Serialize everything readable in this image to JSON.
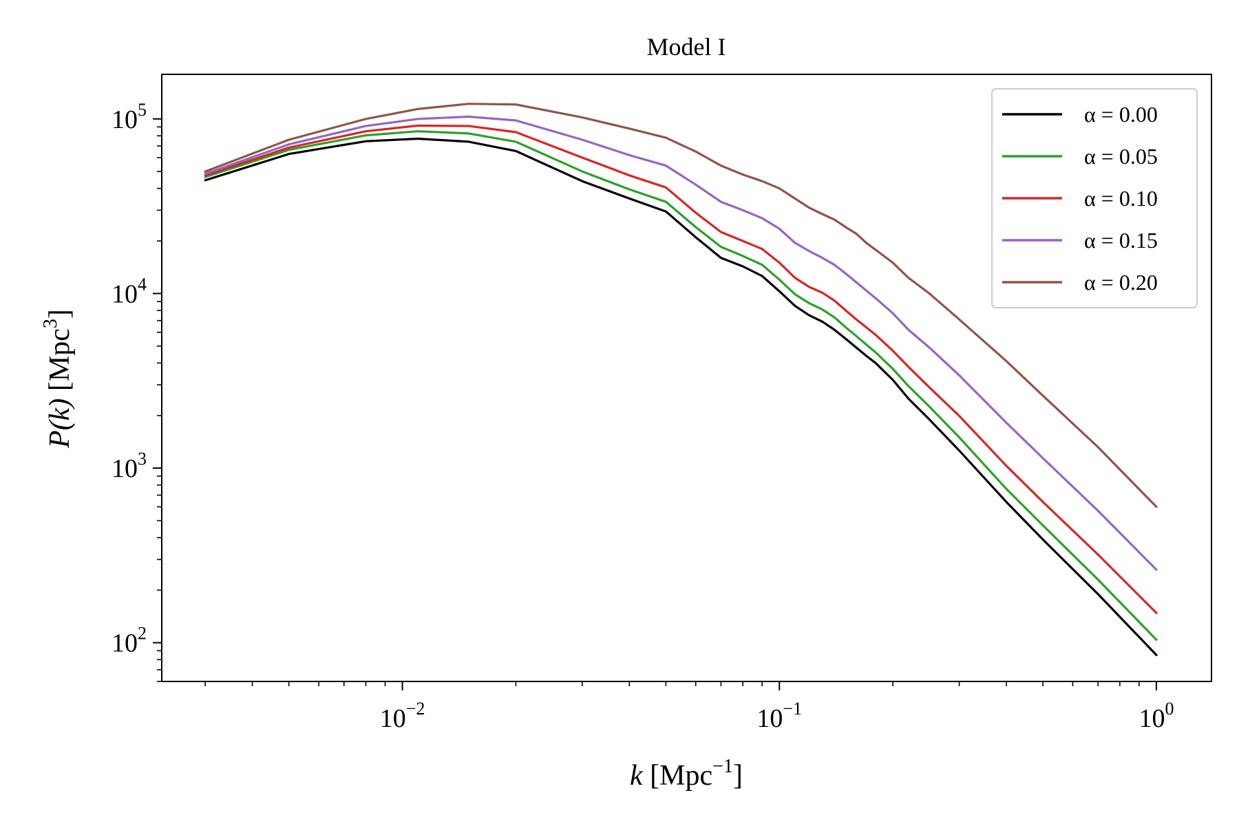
{
  "chart_data": {
    "type": "line",
    "title": "Model I",
    "xlabel": {
      "var": "k",
      "unit": "Mpc",
      "exp": "−1"
    },
    "ylabel": {
      "var": "P(k)",
      "unit": "Mpc",
      "exp": "3"
    },
    "xscale": "log",
    "yscale": "log",
    "xlim": [
      0.0023,
      1.4
    ],
    "ylim": [
      60,
      180000
    ],
    "xticks": [
      {
        "value": 0.01,
        "base": "10",
        "exp": "−2"
      },
      {
        "value": 0.1,
        "base": "10",
        "exp": "−1"
      },
      {
        "value": 1,
        "base": "10",
        "exp": "0"
      }
    ],
    "yticks": [
      {
        "value": 100,
        "base": "10",
        "exp": "2"
      },
      {
        "value": 1000,
        "base": "10",
        "exp": "3"
      },
      {
        "value": 10000,
        "base": "10",
        "exp": "4"
      },
      {
        "value": 100000,
        "base": "10",
        "exp": "5"
      }
    ],
    "legend_position": "top-right",
    "x": [
      0.003,
      0.005,
      0.008,
      0.011,
      0.015,
      0.02,
      0.03,
      0.04,
      0.05,
      0.06,
      0.07,
      0.08,
      0.09,
      0.1,
      0.11,
      0.12,
      0.13,
      0.14,
      0.15,
      0.16,
      0.17,
      0.18,
      0.2,
      0.22,
      0.25,
      0.3,
      0.4,
      0.5,
      0.7,
      1.0
    ],
    "series": [
      {
        "name": "α = 0.00",
        "color": "#000000",
        "values": [
          44500,
          63000,
          74500,
          77000,
          74000,
          65500,
          44000,
          35000,
          29500,
          21000,
          16000,
          14300,
          12600,
          10300,
          8500,
          7500,
          6900,
          6200,
          5500,
          4900,
          4400,
          4000,
          3200,
          2500,
          1900,
          1260,
          640,
          390,
          190,
          85
        ]
      },
      {
        "name": "α = 0.05",
        "color": "#2ca02c",
        "values": [
          46500,
          66500,
          80500,
          85000,
          82500,
          74000,
          50000,
          39500,
          33500,
          24000,
          18500,
          16400,
          14600,
          12000,
          9900,
          8800,
          8100,
          7300,
          6400,
          5700,
          5100,
          4600,
          3700,
          2950,
          2250,
          1500,
          760,
          470,
          230,
          104
        ]
      },
      {
        "name": "α = 0.10",
        "color": "#d62728",
        "values": [
          47500,
          68500,
          85000,
          91500,
          91000,
          84000,
          60000,
          47500,
          40500,
          29000,
          22500,
          20000,
          18000,
          15000,
          12300,
          10900,
          10100,
          9100,
          8000,
          7100,
          6400,
          5800,
          4700,
          3800,
          2900,
          1990,
          1030,
          640,
          320,
          148
        ]
      },
      {
        "name": "α = 0.15",
        "color": "#9467bd",
        "values": [
          48500,
          71500,
          91000,
          100000,
          103000,
          98000,
          76000,
          62000,
          54000,
          42000,
          33500,
          30000,
          27000,
          23500,
          19500,
          17500,
          16000,
          14600,
          13000,
          11600,
          10400,
          9400,
          7700,
          6200,
          4900,
          3400,
          1820,
          1140,
          570,
          262
        ]
      },
      {
        "name": "α = 0.20",
        "color": "#8c564b",
        "values": [
          50000,
          76000,
          100000,
          114000,
          122000,
          121000,
          102000,
          88000,
          78000,
          65000,
          54000,
          48000,
          44000,
          40000,
          35000,
          31000,
          28500,
          26500,
          24000,
          22000,
          19500,
          17800,
          15000,
          12300,
          10000,
          7100,
          4100,
          2600,
          1320,
          600
        ]
      }
    ]
  }
}
